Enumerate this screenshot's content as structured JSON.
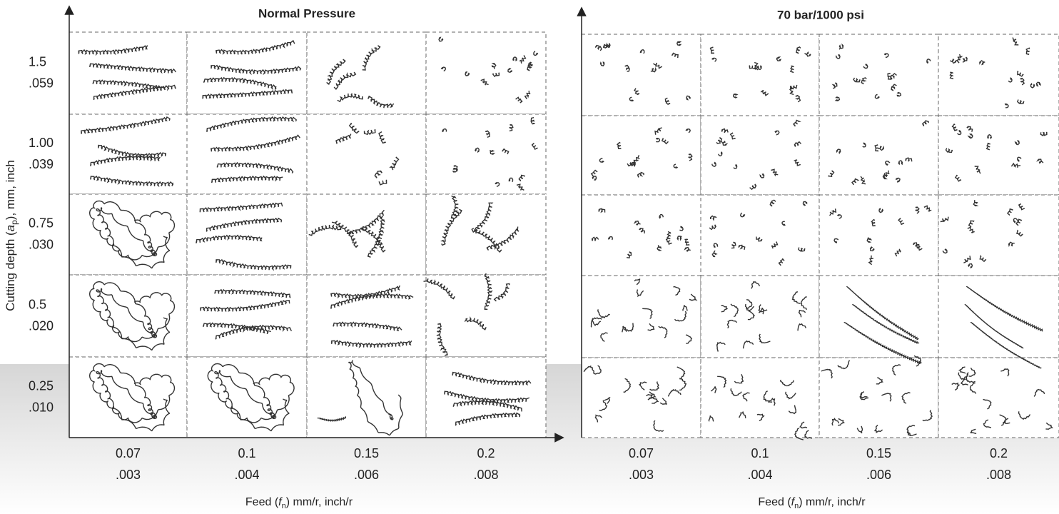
{
  "y_axis": {
    "title": {
      "prefix": "Cutting depth (",
      "symbol": "a",
      "subscript": "p",
      "suffix": "), mm, inch"
    },
    "labels": [
      {
        "mm": "1.5",
        "inch": ".059"
      },
      {
        "mm": "1.00",
        "inch": ".039"
      },
      {
        "mm": "0.75",
        "inch": ".030"
      },
      {
        "mm": "0.5",
        "inch": ".020"
      },
      {
        "mm": "0.25",
        "inch": ".010"
      }
    ]
  },
  "panels": [
    {
      "title": "Normal Pressure",
      "x_labels": [
        {
          "mm": "0.07",
          "inch": ".003"
        },
        {
          "mm": "0.1",
          "inch": ".004"
        },
        {
          "mm": "0.15",
          "inch": ".006"
        },
        {
          "mm": "0.2",
          "inch": ".008"
        }
      ],
      "x_title": {
        "prefix": "Feed (",
        "symbol": "f",
        "subscript": "n",
        "suffix": ") mm/r, inch/r"
      }
    },
    {
      "title": "70 bar/1000 psi",
      "x_labels": [
        {
          "mm": "0.07",
          "inch": ".003"
        },
        {
          "mm": "0.1",
          "inch": ".004"
        },
        {
          "mm": "0.15",
          "inch": ".006"
        },
        {
          "mm": "0.2",
          "inch": ".008"
        }
      ],
      "x_title": {
        "prefix": "Feed (",
        "symbol": "f",
        "subscript": "n",
        "suffix": ") mm/r, inch/r"
      }
    }
  ]
}
